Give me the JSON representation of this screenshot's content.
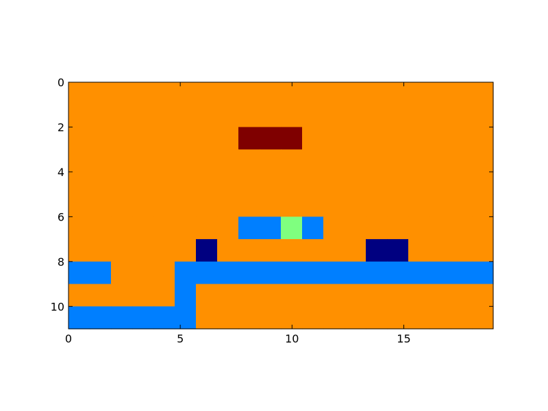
{
  "chart_data": {
    "type": "heatmap",
    "title": "",
    "xlabel": "",
    "ylabel": "",
    "xlim": [
      0,
      19
    ],
    "ylim": [
      11,
      0
    ],
    "x_ticks": [
      0,
      5,
      10,
      15
    ],
    "y_ticks": [
      0,
      2,
      4,
      6,
      8,
      10
    ],
    "colormap": "jet",
    "colors": {
      "0": "#ff9000",
      "1": "#000080",
      "2": "#007fff",
      "3": "#7fff7f",
      "4": "#7f0000"
    },
    "grid": [
      [
        0,
        0,
        0,
        0,
        0,
        0,
        0,
        0,
        0,
        0,
        0,
        0,
        0,
        0,
        0,
        0,
        0,
        0,
        0,
        0
      ],
      [
        0,
        0,
        0,
        0,
        0,
        0,
        0,
        0,
        0,
        0,
        0,
        0,
        0,
        0,
        0,
        0,
        0,
        0,
        0,
        0
      ],
      [
        0,
        0,
        0,
        0,
        0,
        0,
        0,
        0,
        4,
        4,
        4,
        0,
        0,
        0,
        0,
        0,
        0,
        0,
        0,
        0
      ],
      [
        0,
        0,
        0,
        0,
        0,
        0,
        0,
        0,
        0,
        0,
        0,
        0,
        0,
        0,
        0,
        0,
        0,
        0,
        0,
        0
      ],
      [
        0,
        0,
        0,
        0,
        0,
        0,
        0,
        0,
        0,
        0,
        0,
        0,
        0,
        0,
        0,
        0,
        0,
        0,
        0,
        0
      ],
      [
        0,
        0,
        0,
        0,
        0,
        0,
        0,
        0,
        0,
        0,
        0,
        0,
        0,
        0,
        0,
        0,
        0,
        0,
        0,
        0
      ],
      [
        0,
        0,
        0,
        0,
        0,
        0,
        0,
        0,
        2,
        2,
        3,
        2,
        0,
        0,
        0,
        0,
        0,
        0,
        0,
        0
      ],
      [
        0,
        0,
        0,
        0,
        0,
        0,
        1,
        0,
        0,
        0,
        0,
        0,
        0,
        0,
        1,
        1,
        0,
        0,
        0,
        0
      ],
      [
        2,
        2,
        0,
        0,
        0,
        2,
        2,
        2,
        2,
        2,
        2,
        2,
        2,
        2,
        2,
        2,
        2,
        2,
        2,
        2
      ],
      [
        0,
        0,
        0,
        0,
        0,
        2,
        0,
        0,
        0,
        0,
        0,
        0,
        0,
        0,
        0,
        0,
        0,
        0,
        0,
        0
      ],
      [
        2,
        2,
        2,
        2,
        2,
        2,
        0,
        0,
        0,
        0,
        0,
        0,
        0,
        0,
        0,
        0,
        0,
        0,
        0,
        0
      ]
    ]
  }
}
